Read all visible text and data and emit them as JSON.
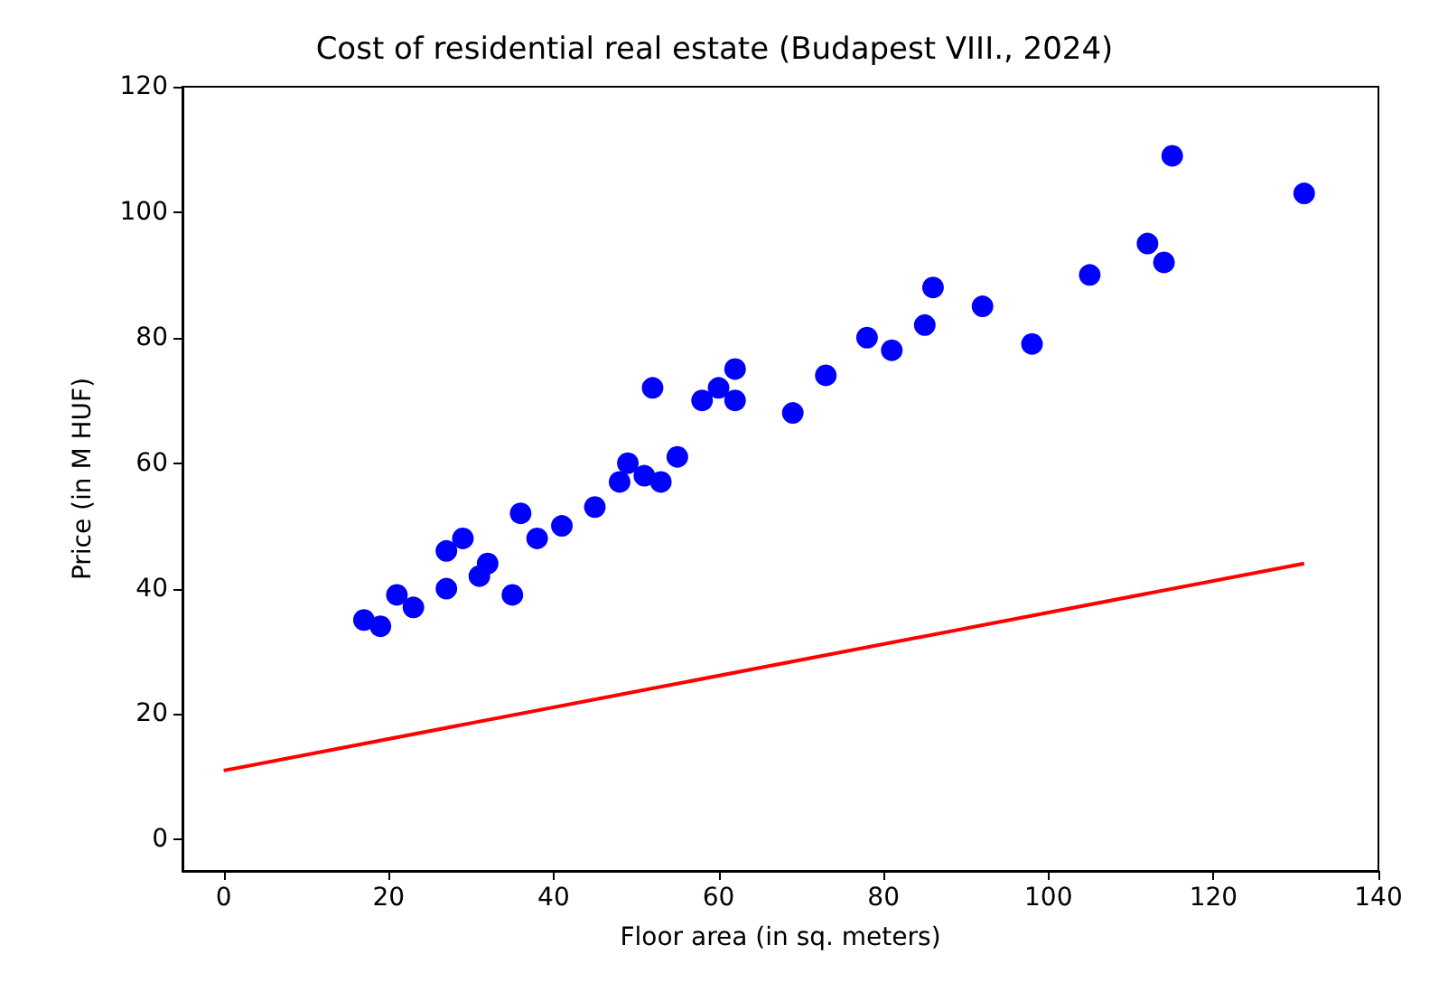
{
  "chart_data": {
    "type": "scatter",
    "title": "Cost of residential real estate (Budapest VIII., 2024)",
    "xlabel": "Floor area (in sq. meters)",
    "ylabel": "Price (in M HUF)",
    "xlim": [
      -5,
      140
    ],
    "ylim": [
      -5,
      120
    ],
    "xticks": [
      0,
      20,
      40,
      60,
      80,
      100,
      120,
      140
    ],
    "yticks": [
      0,
      20,
      40,
      60,
      80,
      100,
      120
    ],
    "grid": false,
    "marker": "circle",
    "series": [
      {
        "color": "#0000ff",
        "x": [
          17,
          19,
          21,
          23,
          27,
          27,
          29,
          31,
          32,
          35,
          36,
          38,
          41,
          45,
          48,
          49,
          51,
          53,
          52,
          55,
          58,
          60,
          62,
          62,
          69,
          73,
          78,
          81,
          85,
          86,
          92,
          98,
          105,
          112,
          114,
          115,
          131
        ],
        "values": [
          35,
          34,
          39,
          37,
          40,
          46,
          48,
          42,
          44,
          39,
          52,
          48,
          50,
          53,
          57,
          60,
          58,
          57,
          72,
          61,
          70,
          72,
          70,
          75,
          68,
          74,
          80,
          78,
          82,
          88,
          85,
          79,
          90,
          95,
          92,
          109,
          103
        ]
      },
      {
        "type": "line",
        "color": "#ff0000",
        "x": [
          0,
          131
        ],
        "values": [
          11,
          44
        ],
        "marker": "none",
        "line_style": "solid"
      }
    ]
  }
}
